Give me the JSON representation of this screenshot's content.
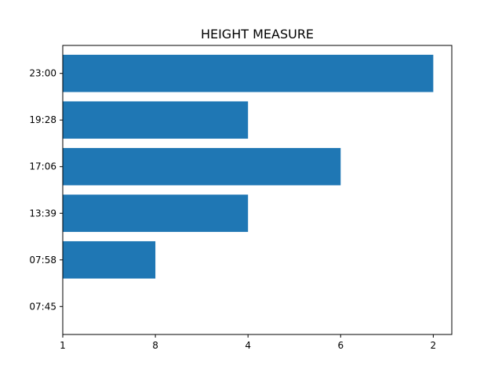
{
  "chart_data": {
    "type": "bar",
    "orientation": "horizontal",
    "title": "HEIGHT MEASURE",
    "xlabel": "",
    "ylabel": "",
    "categories": [
      "07:45",
      "07:58",
      "13:39",
      "17:06",
      "19:28",
      "23:00"
    ],
    "values": [
      0,
      1,
      2,
      3,
      2,
      4
    ],
    "x_tick_values": [
      0,
      1,
      2,
      3,
      4
    ],
    "x_tick_labels": [
      "1",
      "8",
      "4",
      "6",
      "2"
    ],
    "xlim": [
      0,
      4.2
    ],
    "grid": false,
    "legend": "none",
    "bar_color": "#1f77b4"
  }
}
